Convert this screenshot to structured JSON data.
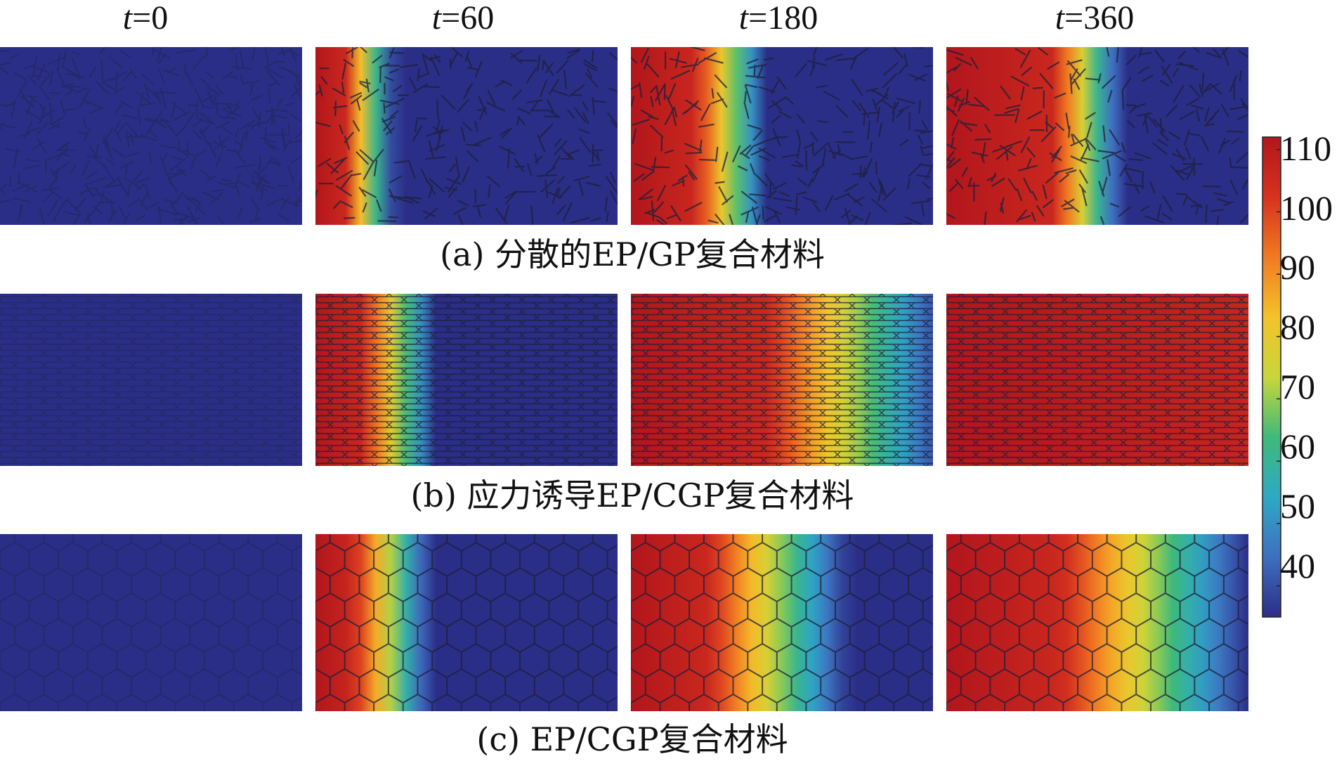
{
  "columns": [
    {
      "var": "t",
      "value": "=0"
    },
    {
      "var": "t",
      "value": "=60"
    },
    {
      "var": "t",
      "value": "=180"
    },
    {
      "var": "t",
      "value": "=360"
    }
  ],
  "rows": [
    {
      "caption": "(a) 分散的EP/GP复合材料",
      "structure": "random-sticks"
    },
    {
      "caption": "(b) 应力诱导EP/CGP复合材料",
      "structure": "elongated-hexagons"
    },
    {
      "caption": "(c) EP/CGP复合材料",
      "structure": "hexagons"
    }
  ],
  "colorbar": {
    "min": 35,
    "max": 112,
    "ticks": [
      "110",
      "100",
      "90",
      "80",
      "70",
      "60",
      "50",
      "40"
    ],
    "colormap": [
      "#2b2e87",
      "#3f6fc0",
      "#2ea9c4",
      "#3fba7a",
      "#c9d63a",
      "#f4c22a",
      "#f17a22",
      "#d7321f",
      "#b2161c"
    ]
  },
  "fields": [
    [
      {
        "front": 0.0,
        "reach": 0.0
      },
      {
        "front": 0.1,
        "reach": 0.26
      },
      {
        "front": 0.22,
        "reach": 0.45
      },
      {
        "front": 0.36,
        "reach": 0.58
      }
    ],
    [
      {
        "front": 0.0,
        "reach": 0.0
      },
      {
        "front": 0.16,
        "reach": 0.4
      },
      {
        "front": 0.45,
        "reach": 1.05
      },
      {
        "front": 1.2,
        "reach": 1.8
      }
    ],
    [
      {
        "front": 0.0,
        "reach": 0.0
      },
      {
        "front": 0.13,
        "reach": 0.38
      },
      {
        "front": 0.26,
        "reach": 0.72
      },
      {
        "front": 0.38,
        "reach": 1.0
      }
    ]
  ]
}
